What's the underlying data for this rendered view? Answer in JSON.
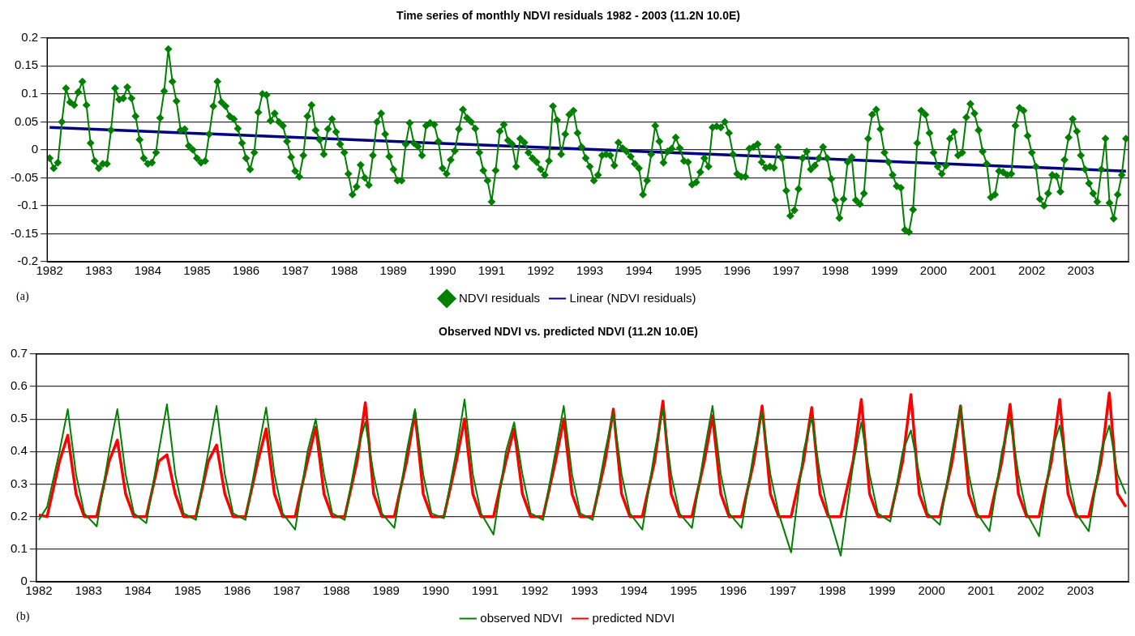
{
  "chart_data": [
    {
      "type": "line",
      "title": "Time series of monthly NDVI residuals 1982 - 2003 (11.2N 10.0E)",
      "xlim": [
        1981.95,
        2003.97
      ],
      "xticks": [
        1982,
        1983,
        1984,
        1985,
        1986,
        1987,
        1988,
        1989,
        1990,
        1991,
        1992,
        1993,
        1994,
        1995,
        1996,
        1997,
        1998,
        1999,
        2000,
        2001,
        2002,
        2003
      ],
      "ylim": [
        -0.2,
        0.2
      ],
      "yticks": [
        -0.2,
        -0.15,
        -0.1,
        -0.05,
        0,
        0.05,
        0.1,
        0.15,
        0.2
      ],
      "grid": "y",
      "legend": "bottom",
      "annotations": [
        "(a)"
      ],
      "x": [
        1982,
        1982.083,
        1982.167,
        1982.25,
        1982.333,
        1982.417,
        1982.5,
        1982.583,
        1982.667,
        1982.75,
        1982.833,
        1982.917,
        1983,
        1983.083,
        1983.167,
        1983.25,
        1983.333,
        1983.417,
        1983.5,
        1983.583,
        1983.667,
        1983.75,
        1983.833,
        1983.917,
        1984,
        1984.083,
        1984.167,
        1984.25,
        1984.333,
        1984.417,
        1984.5,
        1984.583,
        1984.667,
        1984.75,
        1984.833,
        1984.917,
        1985,
        1985.083,
        1985.167,
        1985.25,
        1985.333,
        1985.417,
        1985.5,
        1985.583,
        1985.667,
        1985.75,
        1985.833,
        1985.917,
        1986,
        1986.083,
        1986.167,
        1986.25,
        1986.333,
        1986.417,
        1986.5,
        1986.583,
        1986.667,
        1986.75,
        1986.833,
        1986.917,
        1987,
        1987.083,
        1987.167,
        1987.25,
        1987.333,
        1987.417,
        1987.5,
        1987.583,
        1987.667,
        1987.75,
        1987.833,
        1987.917,
        1988,
        1988.083,
        1988.167,
        1988.25,
        1988.333,
        1988.417,
        1988.5,
        1988.583,
        1988.667,
        1988.75,
        1988.833,
        1988.917,
        1989,
        1989.083,
        1989.167,
        1989.25,
        1989.333,
        1989.417,
        1989.5,
        1989.583,
        1989.667,
        1989.75,
        1989.833,
        1989.917,
        1990,
        1990.083,
        1990.167,
        1990.25,
        1990.333,
        1990.417,
        1990.5,
        1990.583,
        1990.667,
        1990.75,
        1990.833,
        1990.917,
        1991,
        1991.083,
        1991.167,
        1991.25,
        1991.333,
        1991.417,
        1991.5,
        1991.583,
        1991.667,
        1991.75,
        1991.833,
        1991.917,
        1992,
        1992.083,
        1992.167,
        1992.25,
        1992.333,
        1992.417,
        1992.5,
        1992.583,
        1992.667,
        1992.75,
        1992.833,
        1992.917,
        1993,
        1993.083,
        1993.167,
        1993.25,
        1993.333,
        1993.417,
        1993.5,
        1993.583,
        1993.667,
        1993.75,
        1993.833,
        1993.917,
        1994,
        1994.083,
        1994.167,
        1994.25,
        1994.333,
        1994.417,
        1994.5,
        1994.583,
        1994.667,
        1994.75,
        1994.833,
        1994.917,
        1995,
        1995.083,
        1995.167,
        1995.25,
        1995.333,
        1995.417,
        1995.5,
        1995.583,
        1995.667,
        1995.75,
        1995.833,
        1995.917,
        1996,
        1996.083,
        1996.167,
        1996.25,
        1996.333,
        1996.417,
        1996.5,
        1996.583,
        1996.667,
        1996.75,
        1996.833,
        1996.917,
        1997,
        1997.083,
        1997.167,
        1997.25,
        1997.333,
        1997.417,
        1997.5,
        1997.583,
        1997.667,
        1997.75,
        1997.833,
        1997.917,
        1998,
        1998.083,
        1998.167,
        1998.25,
        1998.333,
        1998.417,
        1998.5,
        1998.583,
        1998.667,
        1998.75,
        1998.833,
        1998.917,
        1999,
        1999.083,
        1999.167,
        1999.25,
        1999.333,
        1999.417,
        1999.5,
        1999.583,
        1999.667,
        1999.75,
        1999.833,
        1999.917,
        2000,
        2000.083,
        2000.167,
        2000.25,
        2000.333,
        2000.417,
        2000.5,
        2000.583,
        2000.667,
        2000.75,
        2000.833,
        2000.917,
        2001,
        2001.083,
        2001.167,
        2001.25,
        2001.333,
        2001.417,
        2001.5,
        2001.583,
        2001.667,
        2001.75,
        2001.833,
        2001.917,
        2002,
        2002.083,
        2002.167,
        2002.25,
        2002.333,
        2002.417,
        2002.5,
        2002.583,
        2002.667,
        2002.75,
        2002.833,
        2002.917,
        2003,
        2003.083,
        2003.167,
        2003.25,
        2003.333,
        2003.417,
        2003.5,
        2003.583,
        2003.667,
        2003.75,
        2003.833,
        2003.917
      ],
      "series": [
        {
          "name": "NDVI residuals",
          "color": "#008000",
          "marker": "diamond",
          "values": [
            -0.015,
            -0.033,
            -0.023,
            0.05,
            0.11,
            0.085,
            0.08,
            0.103,
            0.122,
            0.08,
            0.012,
            -0.02,
            -0.033,
            -0.025,
            -0.025,
            0.035,
            0.11,
            0.09,
            0.092,
            0.112,
            0.092,
            0.06,
            0.018,
            -0.015,
            -0.025,
            -0.023,
            -0.005,
            0.057,
            0.105,
            0.18,
            0.122,
            0.087,
            0.035,
            0.037,
            0.007,
            0,
            -0.015,
            -0.023,
            -0.02,
            0.028,
            0.078,
            0.122,
            0.085,
            0.078,
            0.06,
            0.055,
            0.038,
            0.012,
            -0.015,
            -0.035,
            -0.005,
            0.067,
            0.1,
            0.098,
            0.052,
            0.065,
            0.05,
            0.043,
            0.015,
            -0.013,
            -0.038,
            -0.048,
            -0.01,
            0.06,
            0.08,
            0.035,
            0.018,
            -0.008,
            0.037,
            0.055,
            0.032,
            0.01,
            -0.005,
            -0.043,
            -0.08,
            -0.066,
            -0.027,
            -0.05,
            -0.063,
            -0.01,
            0.05,
            0.065,
            0.028,
            -0.012,
            -0.035,
            -0.055,
            -0.055,
            0.01,
            0.048,
            0.012,
            0.006,
            -0.01,
            0.043,
            0.048,
            0.045,
            0.015,
            -0.033,
            -0.043,
            -0.018,
            -0.002,
            0.037,
            0.072,
            0.057,
            0.05,
            0.038,
            -0.005,
            -0.037,
            -0.055,
            -0.093,
            -0.037,
            0.033,
            0.045,
            0.017,
            0.01,
            -0.03,
            0.02,
            0.013,
            -0.005,
            -0.015,
            -0.022,
            -0.035,
            -0.045,
            -0.02,
            0.078,
            0.053,
            -0.008,
            0.028,
            0.063,
            0.07,
            0.03,
            0.005,
            -0.015,
            -0.03,
            -0.055,
            -0.045,
            -0.01,
            -0.008,
            -0.01,
            -0.028,
            0.013,
            0.003,
            -0.003,
            -0.012,
            -0.025,
            -0.033,
            -0.08,
            -0.055,
            -0.008,
            0.043,
            0.015,
            -0.023,
            -0.003,
            0.002,
            0.022,
            0.003,
            -0.02,
            -0.022,
            -0.062,
            -0.058,
            -0.04,
            -0.015,
            -0.03,
            0.04,
            0.042,
            0.04,
            0.05,
            0.03,
            -0.008,
            -0.043,
            -0.048,
            -0.048,
            0.002,
            0.005,
            0.01,
            -0.022,
            -0.032,
            -0.03,
            -0.032,
            0.005,
            -0.015,
            -0.073,
            -0.118,
            -0.108,
            -0.07,
            -0.015,
            -0.003,
            -0.035,
            -0.028,
            -0.015,
            0.005,
            -0.015,
            -0.052,
            -0.09,
            -0.122,
            -0.088,
            -0.022,
            -0.013,
            -0.09,
            -0.097,
            -0.078,
            0.02,
            0.063,
            0.072,
            0.037,
            -0.005,
            -0.022,
            -0.045,
            -0.065,
            -0.068,
            -0.143,
            -0.147,
            -0.107,
            0.012,
            0.07,
            0.063,
            0.03,
            -0.005,
            -0.03,
            -0.043,
            -0.028,
            0.02,
            0.032,
            -0.01,
            -0.005,
            0.058,
            0.082,
            0.065,
            0.035,
            -0.003,
            -0.025,
            -0.085,
            -0.08,
            -0.038,
            -0.04,
            -0.045,
            -0.043,
            0.043,
            0.075,
            0.07,
            0.025,
            -0.005,
            -0.03,
            -0.088,
            -0.1,
            -0.078,
            -0.045,
            -0.047,
            -0.075,
            -0.018,
            0.022,
            0.055,
            0.033,
            -0.01,
            -0.035,
            -0.06,
            -0.078,
            -0.093,
            -0.035,
            0.02,
            -0.095,
            -0.123,
            -0.08,
            -0.045,
            0.02
          ]
        },
        {
          "name": "Linear (NDVI residuals)",
          "type": "line",
          "color": "#000080",
          "marker": "none",
          "x": [
            1982,
            2003.917
          ],
          "values": [
            0.04,
            -0.038
          ]
        }
      ]
    },
    {
      "type": "line",
      "title": "Observed NDVI vs. predicted NDVI (11.2N 10.0E)",
      "xlim": [
        1981.95,
        2003.97
      ],
      "xticks": [
        1982,
        1983,
        1984,
        1985,
        1986,
        1987,
        1988,
        1989,
        1990,
        1991,
        1992,
        1993,
        1994,
        1995,
        1996,
        1997,
        1998,
        1999,
        2000,
        2001,
        2002,
        2003
      ],
      "ylim": [
        0,
        0.7
      ],
      "yticks": [
        0,
        0.1,
        0.2,
        0.3,
        0.4,
        0.5,
        0.6,
        0.7
      ],
      "grid": "y",
      "legend": "bottom",
      "marker": "none",
      "annotations": [
        "(b)"
      ],
      "x": [
        1982,
        1982.167,
        1982.417,
        1982.583,
        1982.75,
        1982.917,
        1983.167,
        1983.417,
        1983.583,
        1983.75,
        1983.917,
        1984.167,
        1984.417,
        1984.583,
        1984.75,
        1984.917,
        1985.167,
        1985.417,
        1985.583,
        1985.75,
        1985.917,
        1986.167,
        1986.417,
        1986.583,
        1986.75,
        1986.917,
        1987.167,
        1987.417,
        1987.583,
        1987.75,
        1987.917,
        1988.167,
        1988.417,
        1988.583,
        1988.75,
        1988.917,
        1989.167,
        1989.417,
        1989.583,
        1989.75,
        1989.917,
        1990.167,
        1990.417,
        1990.583,
        1990.75,
        1990.917,
        1991.167,
        1991.417,
        1991.583,
        1991.75,
        1991.917,
        1992.167,
        1992.417,
        1992.583,
        1992.75,
        1992.917,
        1993.167,
        1993.417,
        1993.583,
        1993.75,
        1993.917,
        1994.167,
        1994.417,
        1994.583,
        1994.75,
        1994.917,
        1995.167,
        1995.417,
        1995.583,
        1995.75,
        1995.917,
        1996.167,
        1996.417,
        1996.583,
        1996.75,
        1996.917,
        1997.167,
        1997.417,
        1997.583,
        1997.75,
        1997.917,
        1998.167,
        1998.417,
        1998.583,
        1998.75,
        1998.917,
        1999.167,
        1999.417,
        1999.583,
        1999.75,
        1999.917,
        2000.167,
        2000.417,
        2000.583,
        2000.75,
        2000.917,
        2001.167,
        2001.417,
        2001.583,
        2001.75,
        2001.917,
        2002.167,
        2002.417,
        2002.583,
        2002.75,
        2002.917,
        2003.167,
        2003.417,
        2003.583,
        2003.75,
        2003.917
      ],
      "series": [
        {
          "name": "observed NDVI",
          "color": "#008000",
          "values": [
            0.19,
            0.23,
            0.4,
            0.53,
            0.33,
            0.21,
            0.17,
            0.4,
            0.53,
            0.33,
            0.21,
            0.18,
            0.4,
            0.545,
            0.33,
            0.21,
            0.19,
            0.4,
            0.54,
            0.33,
            0.21,
            0.19,
            0.4,
            0.535,
            0.33,
            0.21,
            0.16,
            0.4,
            0.5,
            0.33,
            0.21,
            0.19,
            0.4,
            0.49,
            0.33,
            0.21,
            0.165,
            0.4,
            0.53,
            0.33,
            0.21,
            0.195,
            0.4,
            0.56,
            0.33,
            0.21,
            0.145,
            0.4,
            0.49,
            0.33,
            0.21,
            0.19,
            0.4,
            0.54,
            0.33,
            0.21,
            0.19,
            0.4,
            0.52,
            0.33,
            0.21,
            0.16,
            0.4,
            0.53,
            0.33,
            0.21,
            0.165,
            0.4,
            0.54,
            0.33,
            0.21,
            0.165,
            0.4,
            0.52,
            0.33,
            0.21,
            0.09,
            0.4,
            0.505,
            0.33,
            0.21,
            0.08,
            0.36,
            0.49,
            0.33,
            0.21,
            0.185,
            0.4,
            0.465,
            0.33,
            0.21,
            0.175,
            0.4,
            0.54,
            0.33,
            0.21,
            0.155,
            0.4,
            0.5,
            0.33,
            0.21,
            0.14,
            0.4,
            0.48,
            0.33,
            0.21,
            0.155,
            0.4,
            0.48,
            0.33,
            0.27
          ]
        },
        {
          "name": "predicted NDVI",
          "color": "#ff0000",
          "values": [
            0.205,
            0.2,
            0.37,
            0.45,
            0.27,
            0.2,
            0.2,
            0.37,
            0.435,
            0.27,
            0.2,
            0.2,
            0.37,
            0.39,
            0.27,
            0.2,
            0.2,
            0.37,
            0.42,
            0.27,
            0.2,
            0.2,
            0.37,
            0.47,
            0.27,
            0.2,
            0.2,
            0.37,
            0.475,
            0.27,
            0.2,
            0.2,
            0.37,
            0.55,
            0.27,
            0.2,
            0.2,
            0.37,
            0.52,
            0.27,
            0.2,
            0.2,
            0.37,
            0.5,
            0.27,
            0.2,
            0.2,
            0.37,
            0.47,
            0.27,
            0.2,
            0.2,
            0.37,
            0.5,
            0.27,
            0.2,
            0.2,
            0.37,
            0.53,
            0.27,
            0.2,
            0.2,
            0.37,
            0.555,
            0.27,
            0.2,
            0.2,
            0.37,
            0.51,
            0.27,
            0.2,
            0.2,
            0.37,
            0.54,
            0.27,
            0.2,
            0.2,
            0.37,
            0.535,
            0.27,
            0.2,
            0.2,
            0.37,
            0.56,
            0.27,
            0.2,
            0.2,
            0.37,
            0.575,
            0.27,
            0.2,
            0.2,
            0.37,
            0.54,
            0.27,
            0.2,
            0.2,
            0.37,
            0.545,
            0.27,
            0.2,
            0.2,
            0.37,
            0.56,
            0.27,
            0.2,
            0.2,
            0.37,
            0.58,
            0.27,
            0.23
          ]
        }
      ]
    }
  ]
}
